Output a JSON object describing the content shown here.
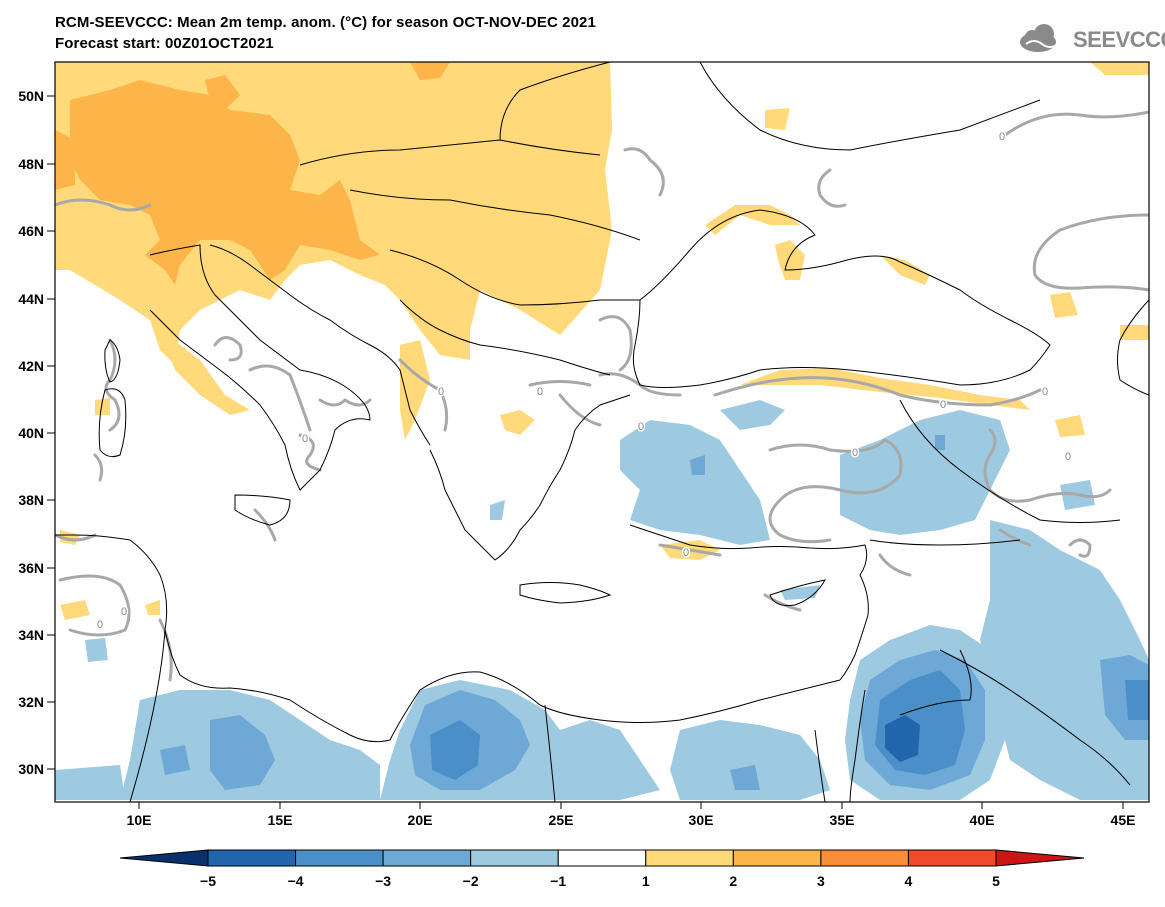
{
  "header": {
    "title_line1": "RCM-SEEVCCC: Mean 2m temp. anom. (°C) for season OCT-NOV-DEC 2021",
    "title_line2": "Forecast start: 00Z01OCT2021",
    "logo_text": "SEEVCCC"
  },
  "map": {
    "lat_labels": [
      "50N",
      "48N",
      "46N",
      "44N",
      "42N",
      "40N",
      "38N",
      "36N",
      "34N",
      "32N",
      "30N"
    ],
    "lon_labels": [
      "10E",
      "15E",
      "20E",
      "25E",
      "30E",
      "35E",
      "40E",
      "45E"
    ],
    "contour_label": "0"
  },
  "colorbar": {
    "ticks": [
      "−5",
      "−4",
      "−3",
      "−2",
      "−1",
      "1",
      "2",
      "3",
      "4",
      "5"
    ],
    "colors": [
      "#08306b",
      "#2166ac",
      "#4a8fc8",
      "#6ea8d6",
      "#9ecae1",
      "#ffffff",
      "#ffd97a",
      "#fdb54a",
      "#f98d3a",
      "#ef4a2c",
      "#cc1616"
    ],
    "low_cap_color": "#08306b",
    "high_cap_color": "#cc1616"
  },
  "legend_colors": {
    "anom_plus1": "#ffd97a",
    "anom_plus2": "#fdb54a",
    "anom_minus1": "#9ecae1",
    "anom_minus2": "#6ea8d6",
    "anom_minus3": "#4a8fc8",
    "anom_minus4": "#2166ac",
    "contour": "#a8a8a8"
  }
}
